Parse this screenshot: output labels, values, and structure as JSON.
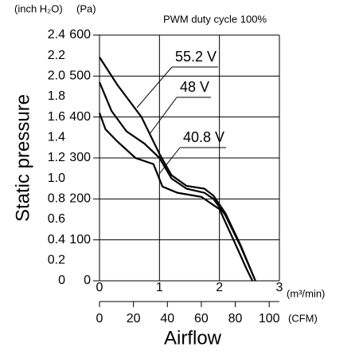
{
  "chart_data": {
    "type": "line",
    "title": "PWM duty cycle 100%",
    "xlabel": "Airflow",
    "ylabel": "Static pressure",
    "y_unit": "(Pa)",
    "y2_unit": "(inch H₂O)",
    "x_unit": "(m³/min)",
    "x2_unit": "(CFM)",
    "xlim": [
      0,
      3
    ],
    "xticks": [
      0,
      1,
      2,
      3
    ],
    "x2lim": [
      0,
      106
    ],
    "x2ticks": [
      0,
      20,
      40,
      60,
      80,
      100
    ],
    "ylim": [
      0,
      600
    ],
    "yticks": [
      0,
      100,
      200,
      300,
      400,
      500,
      600
    ],
    "y2lim": [
      0,
      2.4
    ],
    "y2ticks": [
      {
        "value": 0,
        "label": "0"
      },
      0.2,
      0.4,
      0.6,
      0.8,
      {
        "value": 1,
        "label": "1.0"
      },
      1.2,
      1.4,
      1.6,
      1.8,
      {
        "value": 2,
        "label": "2.0"
      },
      2.2,
      2.4
    ],
    "grid": true,
    "series": [
      {
        "name": "55.2 V",
        "color": "#000000",
        "x": [
          0,
          0.3,
          0.7,
          1.0,
          1.2,
          1.45,
          1.75,
          1.9,
          2.1,
          2.35,
          2.6
        ],
        "values": [
          546,
          478,
          400,
          310,
          258,
          232,
          225,
          208,
          165,
          88,
          0
        ]
      },
      {
        "name": "48 V",
        "color": "#000000",
        "x": [
          0,
          0.2,
          0.45,
          0.75,
          1.0,
          1.2,
          1.45,
          1.75,
          1.9,
          2.1,
          2.35,
          2.6
        ],
        "values": [
          485,
          415,
          365,
          335,
          300,
          250,
          225,
          215,
          200,
          160,
          85,
          0
        ]
      },
      {
        "name": "40.8 V",
        "color": "#000000",
        "x": [
          0,
          0.1,
          0.3,
          0.6,
          0.9,
          1.05,
          1.3,
          1.7,
          2.0,
          2.25,
          2.45,
          2.55
        ],
        "values": [
          410,
          370,
          340,
          300,
          285,
          230,
          215,
          205,
          175,
          95,
          30,
          0
        ]
      }
    ]
  }
}
